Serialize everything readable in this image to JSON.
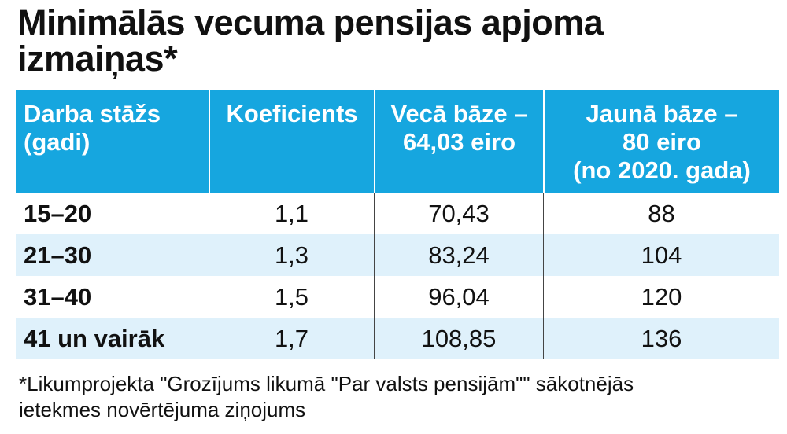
{
  "header": {
    "title_lines": [
      "Minimālās vecuma pensijas apjoma",
      "izmaiņas*"
    ]
  },
  "table": {
    "columns": [
      [
        "Darba stāžs",
        "(gadi)"
      ],
      [
        "Koeficients"
      ],
      [
        "Vecā bāze –",
        "64,03 eiro"
      ],
      [
        "Jaunā bāze –",
        "80 eiro",
        "(no 2020. gada)"
      ]
    ],
    "rows": [
      [
        "15–20",
        "1,1",
        "70,43",
        "88"
      ],
      [
        "21–30",
        "1,3",
        "83,24",
        "104"
      ],
      [
        "31–40",
        "1,5",
        "96,04",
        "120"
      ],
      [
        "41 un vairāk",
        "1,7",
        "108,85",
        "136"
      ]
    ]
  },
  "footnote_lines": [
    "*Likumprojekta \"Grozījums likumā \"Par valsts pensijām\"\" sākotnējās",
    "ietekmes novērtējuma ziņojums"
  ]
}
